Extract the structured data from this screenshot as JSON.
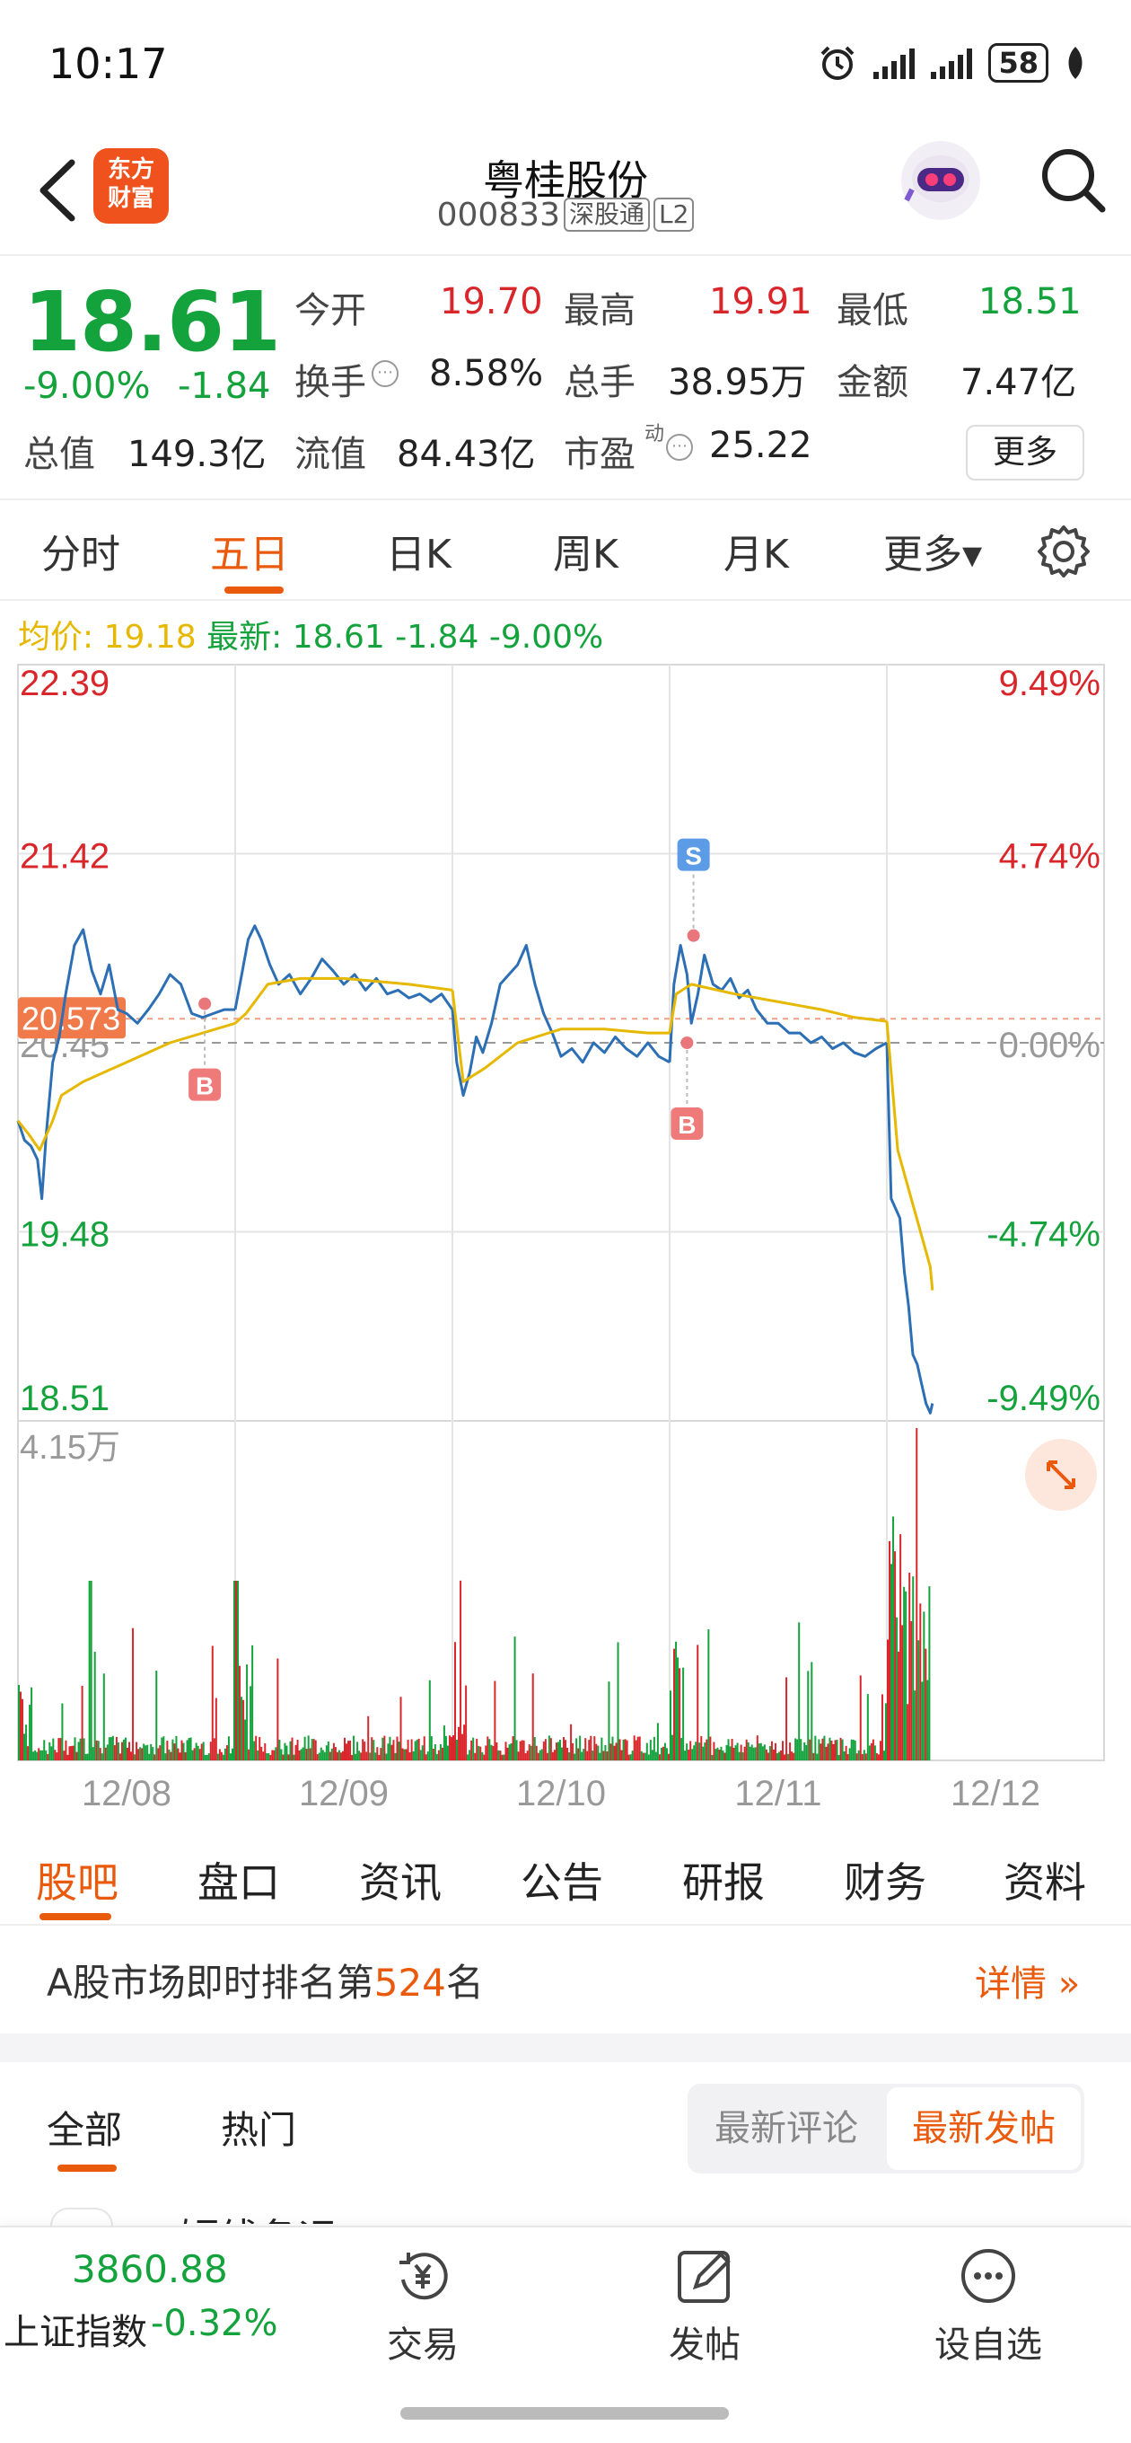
{
  "status_bar": {
    "time": "10:17",
    "battery": "58"
  },
  "header": {
    "back_icon": "chevron-left-icon",
    "app_logo_line1": "东方",
    "app_logo_line2": "财富",
    "stock_name": "粤桂股份",
    "stock_code": "000833",
    "tag_connect": "深股通",
    "tag_level": "L2",
    "search_icon": "search-icon"
  },
  "quote": {
    "price": "18.61",
    "change_pct": "-9.00%",
    "change": "-1.84",
    "open_label": "今开",
    "open": "19.70",
    "high_label": "最高",
    "high": "19.91",
    "low_label": "最低",
    "low": "18.51",
    "turnover_label": "换手",
    "turnover": "8.58%",
    "volume_label": "总手",
    "volume": "38.95万",
    "amount_label": "金额",
    "amount": "7.47亿",
    "mktcap_label": "总值",
    "mktcap": "149.3亿",
    "float_label": "流值",
    "float_cap": "84.43亿",
    "pe_label": "市盈",
    "pe_sup": "动",
    "pe": "25.22",
    "more_button": "更多"
  },
  "chart_tabs": [
    {
      "label": "分时",
      "active": false
    },
    {
      "label": "五日",
      "active": true
    },
    {
      "label": "日K",
      "active": false
    },
    {
      "label": "周K",
      "active": false
    },
    {
      "label": "月K",
      "active": false
    },
    {
      "label": "更多▾",
      "active": false
    }
  ],
  "chart_legend": {
    "avg_label": "均价:",
    "avg_value": "19.18",
    "latest_label": "最新:",
    "latest_value": "18.61",
    "latest_change": "-1.84",
    "latest_pct": "-9.00%"
  },
  "chart_data": {
    "type": "line",
    "title": "",
    "y_ticks_left": [
      "22.39",
      "21.42",
      "20.45",
      "19.48",
      "18.51"
    ],
    "y_ticks_right": [
      "9.49%",
      "4.74%",
      "0.00%",
      "-4.74%",
      "-9.49%"
    ],
    "ylim": [
      18.51,
      22.39
    ],
    "prev_close": 20.45,
    "marked_price": "20.573",
    "x_ticks": [
      "12/08",
      "12/09",
      "12/10",
      "12/11",
      "12/12"
    ],
    "volume_max_label": "4.15万",
    "series": [
      {
        "name": "最新",
        "points": [
          [
            0,
            20.05
          ],
          [
            0.03,
            19.95
          ],
          [
            0.06,
            19.92
          ],
          [
            0.09,
            19.85
          ],
          [
            0.11,
            19.65
          ],
          [
            0.13,
            19.98
          ],
          [
            0.16,
            20.35
          ],
          [
            0.19,
            20.48
          ],
          [
            0.22,
            20.7
          ],
          [
            0.26,
            20.95
          ],
          [
            0.3,
            21.03
          ],
          [
            0.34,
            20.82
          ],
          [
            0.38,
            20.7
          ],
          [
            0.42,
            20.85
          ],
          [
            0.46,
            20.62
          ],
          [
            0.5,
            20.6
          ],
          [
            0.55,
            20.55
          ],
          [
            0.6,
            20.62
          ],
          [
            0.65,
            20.7
          ],
          [
            0.7,
            20.8
          ],
          [
            0.75,
            20.75
          ],
          [
            0.8,
            20.6
          ],
          [
            0.85,
            20.58
          ],
          [
            0.9,
            20.6
          ],
          [
            0.95,
            20.62
          ],
          [
            1.0,
            20.62
          ],
          [
            1.0,
            20.62
          ],
          [
            1.03,
            20.8
          ],
          [
            1.06,
            20.98
          ],
          [
            1.09,
            21.05
          ],
          [
            1.12,
            20.98
          ],
          [
            1.16,
            20.85
          ],
          [
            1.2,
            20.75
          ],
          [
            1.25,
            20.8
          ],
          [
            1.3,
            20.7
          ],
          [
            1.35,
            20.78
          ],
          [
            1.4,
            20.88
          ],
          [
            1.45,
            20.82
          ],
          [
            1.5,
            20.75
          ],
          [
            1.55,
            20.8
          ],
          [
            1.6,
            20.72
          ],
          [
            1.65,
            20.78
          ],
          [
            1.7,
            20.7
          ],
          [
            1.75,
            20.72
          ],
          [
            1.8,
            20.68
          ],
          [
            1.85,
            20.7
          ],
          [
            1.9,
            20.66
          ],
          [
            1.95,
            20.7
          ],
          [
            2.0,
            20.62
          ],
          [
            2.0,
            20.62
          ],
          [
            2.02,
            20.35
          ],
          [
            2.05,
            20.18
          ],
          [
            2.08,
            20.3
          ],
          [
            2.11,
            20.48
          ],
          [
            2.14,
            20.4
          ],
          [
            2.18,
            20.55
          ],
          [
            2.22,
            20.75
          ],
          [
            2.26,
            20.8
          ],
          [
            2.3,
            20.85
          ],
          [
            2.34,
            20.95
          ],
          [
            2.38,
            20.75
          ],
          [
            2.42,
            20.6
          ],
          [
            2.46,
            20.5
          ],
          [
            2.5,
            20.38
          ],
          [
            2.55,
            20.42
          ],
          [
            2.6,
            20.35
          ],
          [
            2.65,
            20.45
          ],
          [
            2.7,
            20.4
          ],
          [
            2.75,
            20.48
          ],
          [
            2.8,
            20.42
          ],
          [
            2.85,
            20.38
          ],
          [
            2.9,
            20.45
          ],
          [
            2.95,
            20.38
          ],
          [
            3.0,
            20.35
          ],
          [
            3.0,
            20.35
          ],
          [
            3.02,
            20.75
          ],
          [
            3.05,
            20.95
          ],
          [
            3.08,
            20.8
          ],
          [
            3.1,
            20.55
          ],
          [
            3.13,
            20.7
          ],
          [
            3.16,
            20.9
          ],
          [
            3.2,
            20.75
          ],
          [
            3.24,
            20.72
          ],
          [
            3.28,
            20.78
          ],
          [
            3.32,
            20.68
          ],
          [
            3.36,
            20.72
          ],
          [
            3.4,
            20.62
          ],
          [
            3.45,
            20.55
          ],
          [
            3.5,
            20.55
          ],
          [
            3.55,
            20.5
          ],
          [
            3.6,
            20.5
          ],
          [
            3.65,
            20.45
          ],
          [
            3.7,
            20.48
          ],
          [
            3.75,
            20.42
          ],
          [
            3.8,
            20.45
          ],
          [
            3.85,
            20.4
          ],
          [
            3.9,
            20.38
          ],
          [
            3.95,
            20.42
          ],
          [
            4.0,
            20.45
          ],
          [
            4.0,
            20.45
          ],
          [
            4.02,
            19.65
          ],
          [
            4.04,
            19.6
          ],
          [
            4.06,
            19.55
          ],
          [
            4.08,
            19.28
          ],
          [
            4.1,
            19.1
          ],
          [
            4.12,
            18.85
          ],
          [
            4.14,
            18.8
          ],
          [
            4.16,
            18.7
          ],
          [
            4.18,
            18.6
          ],
          [
            4.2,
            18.55
          ],
          [
            4.21,
            18.6
          ]
        ]
      },
      {
        "name": "均价",
        "points": [
          [
            0,
            20.05
          ],
          [
            0.05,
            19.98
          ],
          [
            0.1,
            19.9
          ],
          [
            0.16,
            20.05
          ],
          [
            0.2,
            20.18
          ],
          [
            0.3,
            20.25
          ],
          [
            0.5,
            20.35
          ],
          [
            0.7,
            20.45
          ],
          [
            1.0,
            20.55
          ],
          [
            1.0,
            20.55
          ],
          [
            1.05,
            20.6
          ],
          [
            1.15,
            20.75
          ],
          [
            1.3,
            20.78
          ],
          [
            1.5,
            20.78
          ],
          [
            1.8,
            20.75
          ],
          [
            2.0,
            20.72
          ],
          [
            2.0,
            20.72
          ],
          [
            2.05,
            20.25
          ],
          [
            2.15,
            20.32
          ],
          [
            2.3,
            20.45
          ],
          [
            2.5,
            20.52
          ],
          [
            2.7,
            20.52
          ],
          [
            2.9,
            20.5
          ],
          [
            3.0,
            20.5
          ],
          [
            3.0,
            20.5
          ],
          [
            3.03,
            20.7
          ],
          [
            3.1,
            20.75
          ],
          [
            3.3,
            20.7
          ],
          [
            3.5,
            20.66
          ],
          [
            3.7,
            20.62
          ],
          [
            3.85,
            20.58
          ],
          [
            4.0,
            20.56
          ],
          [
            4.0,
            20.56
          ],
          [
            4.05,
            19.9
          ],
          [
            4.1,
            19.7
          ],
          [
            4.15,
            19.5
          ],
          [
            4.2,
            19.3
          ],
          [
            4.21,
            19.18
          ]
        ]
      }
    ],
    "trade_markers": [
      {
        "type": "B",
        "x": 0.86,
        "price": 20.65
      },
      {
        "type": "S",
        "x": 3.11,
        "price": 21.0
      },
      {
        "type": "B",
        "x": 3.08,
        "price": 20.45
      }
    ]
  },
  "section_tabs": [
    "股吧",
    "盘口",
    "资讯",
    "公告",
    "研报",
    "财务",
    "资料"
  ],
  "rank": {
    "prefix": "A股市场即时排名第",
    "number": "524",
    "suffix": "名",
    "detail": "详情 »"
  },
  "forum": {
    "tabs": [
      "全部",
      "热门"
    ],
    "sort_latest_comment": "最新评论",
    "sort_latest_post": "最新发帖",
    "peek_text": "短线备运"
  },
  "bottom_bar": {
    "index_value": "3860.88",
    "index_name": "上证指数",
    "index_change": "-0.32%",
    "nav": [
      {
        "label": "交易",
        "icon": "trade-yen-icon"
      },
      {
        "label": "发帖",
        "icon": "edit-post-icon"
      },
      {
        "label": "设自选",
        "icon": "more-dots-icon"
      }
    ]
  },
  "colors": {
    "up": "#d9262b",
    "down": "#14a23c",
    "accent": "#ea5a0d",
    "price_line": "#2c6fb5",
    "avg_line": "#e6b800"
  }
}
